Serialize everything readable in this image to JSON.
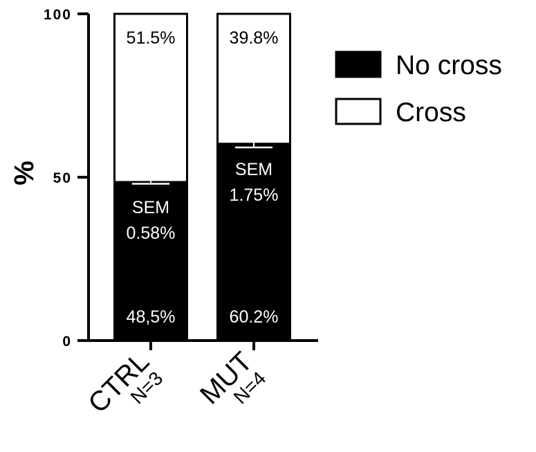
{
  "chart_data": {
    "type": "bar",
    "stacked": true,
    "categories": [
      {
        "name": "CTRL",
        "n": "N=3"
      },
      {
        "name": "MUT",
        "n": "N=4"
      }
    ],
    "series": [
      {
        "name": "No cross",
        "color": "#000000",
        "values": [
          48.5,
          60.2
        ],
        "labels": [
          "48,5%",
          "60.2%"
        ],
        "sem": [
          0.58,
          1.75
        ],
        "sem_title": "SEM",
        "sem_labels": [
          "0.58%",
          "1.75%"
        ]
      },
      {
        "name": "Cross",
        "color": "#ffffff",
        "values": [
          51.5,
          39.8
        ],
        "labels": [
          "51.5%",
          "39.8%"
        ]
      }
    ],
    "ylabel": "%",
    "ylim": [
      0,
      100
    ],
    "yticks": [
      0,
      50,
      100
    ],
    "ytick_labels": [
      "0",
      "50",
      "100"
    ],
    "legend": "right",
    "grid": false
  }
}
